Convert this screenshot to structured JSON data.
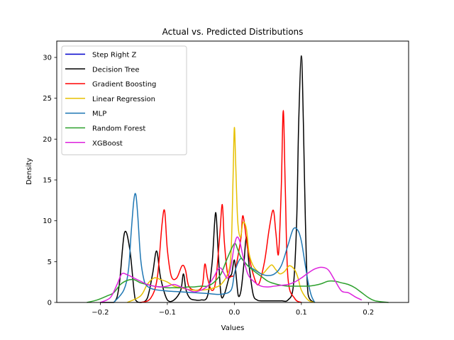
{
  "chart_data": {
    "type": "line",
    "title": "Actual vs. Predicted Distributions",
    "xlabel": "Values",
    "ylabel": "Density",
    "xlim": [
      -0.265,
      0.26
    ],
    "ylim": [
      0,
      32
    ],
    "xticks": [
      -0.2,
      -0.1,
      0.0,
      0.1,
      0.2
    ],
    "xtick_labels": [
      "−0.2",
      "−0.1",
      "0.0",
      "0.1",
      "0.2"
    ],
    "yticks": [
      0,
      5,
      10,
      15,
      20,
      25,
      30
    ],
    "ytick_labels": [
      "0",
      "5",
      "10",
      "15",
      "20",
      "25",
      "30"
    ],
    "grid": false,
    "legend_position": "upper-left",
    "series": [
      {
        "name": "Step Right Z",
        "color": "#0000cc",
        "x": [],
        "y": []
      },
      {
        "name": "Decision Tree",
        "color": "#000000",
        "x": [
          -0.2,
          -0.18,
          -0.172,
          -0.164,
          -0.156,
          -0.148,
          -0.14,
          -0.13,
          -0.122,
          -0.116,
          -0.11,
          -0.1,
          -0.09,
          -0.08,
          -0.076,
          -0.072,
          -0.066,
          -0.058,
          -0.05,
          -0.04,
          -0.033,
          -0.028,
          -0.024,
          -0.02,
          -0.015,
          -0.008,
          -0.004,
          0.0,
          0.003,
          0.006,
          0.01,
          0.014,
          0.018,
          0.022,
          0.028,
          0.034,
          0.04,
          0.05,
          0.06,
          0.07,
          0.08,
          0.088,
          0.093,
          0.096,
          0.1,
          0.103,
          0.106,
          0.11,
          0.12
        ],
        "y": [
          0,
          0,
          2.0,
          8.5,
          6.5,
          0.4,
          0,
          0.5,
          3.5,
          6.3,
          3.0,
          0.3,
          0.3,
          1.5,
          3.5,
          1.5,
          0.5,
          0.3,
          0.3,
          0.8,
          5.0,
          11.0,
          6.0,
          1.0,
          1.0,
          3.0,
          3.5,
          5.2,
          3.0,
          0.8,
          1.5,
          4.5,
          8.0,
          4.5,
          1.0,
          0.3,
          0.2,
          0.2,
          0.2,
          0.2,
          0.3,
          2.0,
          10.0,
          22.0,
          30.2,
          22.0,
          10.0,
          1.0,
          0
        ]
      },
      {
        "name": "Gradient Boosting",
        "color": "#ff0000",
        "x": [
          -0.14,
          -0.125,
          -0.115,
          -0.108,
          -0.104,
          -0.1,
          -0.094,
          -0.086,
          -0.078,
          -0.073,
          -0.068,
          -0.058,
          -0.048,
          -0.044,
          -0.04,
          -0.034,
          -0.028,
          -0.022,
          -0.018,
          -0.015,
          -0.01,
          -0.004,
          0.0,
          0.005,
          0.01,
          0.013,
          0.02,
          0.028,
          0.036,
          0.045,
          0.052,
          0.058,
          0.062,
          0.066,
          0.07,
          0.073,
          0.076,
          0.08,
          0.09,
          0.1
        ],
        "y": [
          0,
          0.5,
          3.0,
          9.5,
          11.2,
          6.5,
          3.2,
          3.0,
          4.5,
          4.0,
          2.0,
          1.5,
          2.0,
          4.7,
          3.0,
          1.5,
          2.5,
          8.0,
          12.0,
          7.5,
          3.5,
          3.2,
          3.5,
          5.5,
          8.0,
          10.6,
          6.5,
          3.5,
          2.2,
          5.0,
          9.0,
          11.3,
          8.5,
          6.0,
          14.0,
          23.5,
          14.0,
          3.0,
          0.5,
          0
        ]
      },
      {
        "name": "Linear Regression",
        "color": "#e6c000",
        "x": [
          -0.16,
          -0.14,
          -0.13,
          -0.12,
          -0.11,
          -0.1,
          -0.09,
          -0.08,
          -0.07,
          -0.06,
          -0.05,
          -0.04,
          -0.03,
          -0.02,
          -0.01,
          -0.005,
          -0.002,
          0.0,
          0.002,
          0.005,
          0.009,
          0.013,
          0.018,
          0.022,
          0.028,
          0.035,
          0.042,
          0.05,
          0.056,
          0.062,
          0.068,
          0.075,
          0.082,
          0.09,
          0.095,
          0.1,
          0.11,
          0.12
        ],
        "y": [
          0,
          0.8,
          2.2,
          3.0,
          2.8,
          2.5,
          2.0,
          1.8,
          1.6,
          1.5,
          1.5,
          1.6,
          1.8,
          2.2,
          3.5,
          6.0,
          15.0,
          21.4,
          17.0,
          10.0,
          8.0,
          9.8,
          9.0,
          6.0,
          4.5,
          3.8,
          3.5,
          4.2,
          4.6,
          4.0,
          3.5,
          3.8,
          4.5,
          4.0,
          3.0,
          1.5,
          0.3,
          0
        ]
      },
      {
        "name": "MLP",
        "color": "#1f77b4",
        "x": [
          -0.18,
          -0.165,
          -0.158,
          -0.154,
          -0.15,
          -0.147,
          -0.144,
          -0.14,
          -0.135,
          -0.13,
          -0.12,
          -0.1,
          -0.08,
          -0.06,
          -0.04,
          -0.02,
          -0.005,
          0.0,
          0.005,
          0.01,
          0.015,
          0.02,
          0.03,
          0.04,
          0.05,
          0.06,
          0.07,
          0.08,
          0.088,
          0.095,
          0.1,
          0.105,
          0.11,
          0.115,
          0.12
        ],
        "y": [
          0,
          1.5,
          4.0,
          8.5,
          12.5,
          13.2,
          10.5,
          5.5,
          2.8,
          2.0,
          1.6,
          1.4,
          1.3,
          1.2,
          1.1,
          1.0,
          1.5,
          3.5,
          4.8,
          5.4,
          5.0,
          4.5,
          4.0,
          3.5,
          3.3,
          3.5,
          4.5,
          7.0,
          9.0,
          8.8,
          7.5,
          5.0,
          2.5,
          0.8,
          0
        ]
      },
      {
        "name": "Random Forest",
        "color": "#2ca02c",
        "x": [
          -0.22,
          -0.205,
          -0.19,
          -0.18,
          -0.17,
          -0.16,
          -0.15,
          -0.14,
          -0.13,
          -0.12,
          -0.11,
          -0.1,
          -0.09,
          -0.08,
          -0.07,
          -0.06,
          -0.05,
          -0.04,
          -0.03,
          -0.02,
          -0.01,
          0.0,
          0.005,
          0.01,
          0.02,
          0.03,
          0.04,
          0.05,
          0.06,
          0.07,
          0.08,
          0.09,
          0.1,
          0.11,
          0.12,
          0.13,
          0.14,
          0.15,
          0.16,
          0.17,
          0.18,
          0.19,
          0.2,
          0.21,
          0.23
        ],
        "y": [
          0,
          0.3,
          0.8,
          1.2,
          2.2,
          2.7,
          2.8,
          2.4,
          2.2,
          2.0,
          1.9,
          1.8,
          1.8,
          1.8,
          1.9,
          1.9,
          2.0,
          2.0,
          2.5,
          3.5,
          5.5,
          7.2,
          6.5,
          5.5,
          4.5,
          3.8,
          3.2,
          2.6,
          2.3,
          2.1,
          2.0,
          2.0,
          2.0,
          2.0,
          2.1,
          2.3,
          2.6,
          2.6,
          2.4,
          2.2,
          1.8,
          1.2,
          0.6,
          0.2,
          0
        ]
      },
      {
        "name": "XGBoost",
        "color": "#dd22dd",
        "x": [
          -0.2,
          -0.185,
          -0.175,
          -0.168,
          -0.16,
          -0.15,
          -0.14,
          -0.13,
          -0.12,
          -0.11,
          -0.1,
          -0.09,
          -0.08,
          -0.07,
          -0.06,
          -0.05,
          -0.04,
          -0.03,
          -0.025,
          -0.02,
          -0.015,
          -0.01,
          -0.005,
          0.0,
          0.004,
          0.008,
          0.012,
          0.02,
          0.03,
          0.04,
          0.05,
          0.06,
          0.07,
          0.08,
          0.09,
          0.1,
          0.11,
          0.12,
          0.13,
          0.14,
          0.15,
          0.16,
          0.17,
          0.18,
          0.19
        ],
        "y": [
          0,
          0.6,
          2.2,
          3.5,
          3.4,
          3.0,
          2.6,
          2.2,
          2.0,
          1.9,
          2.0,
          2.2,
          1.9,
          1.6,
          1.3,
          1.5,
          2.0,
          3.2,
          4.0,
          4.2,
          3.5,
          3.0,
          4.5,
          7.0,
          8.0,
          7.5,
          6.0,
          3.5,
          2.5,
          2.0,
          1.9,
          2.0,
          2.1,
          2.2,
          2.5,
          3.0,
          3.6,
          4.1,
          4.3,
          4.0,
          2.7,
          1.4,
          1.2,
          0.7,
          0.3
        ]
      }
    ]
  }
}
